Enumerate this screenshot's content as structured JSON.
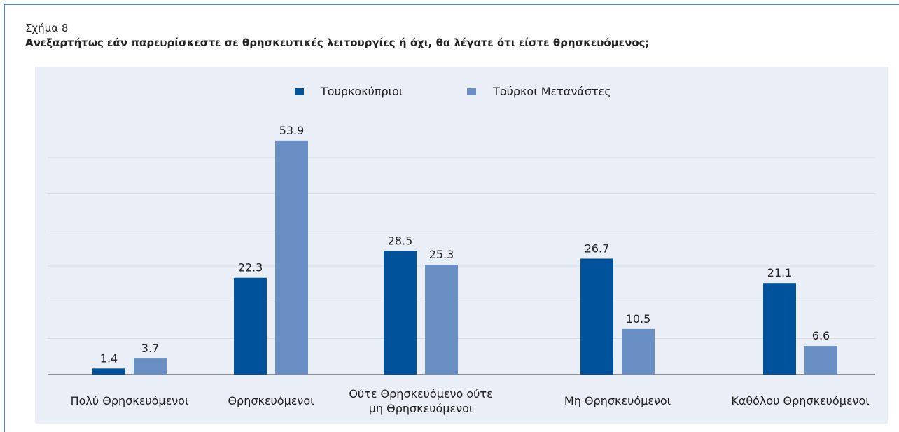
{
  "chart_data": {
    "type": "bar",
    "figure_label": "Σχήμα 8",
    "title": "Ανεξαρτήτως εάν παρευρίσκεστε σε θρησκευτικές λειτουργίες ή όχι, θα λέγατε ότι είστε θρησκευόμενος;",
    "categories": [
      "Πολύ Θρησκευόμενοι",
      "Θρησκευόμενοι",
      "Ούτε Θρησκευόμενο ούτε\nμη Θρησκευόμενοι",
      "Μη Θρησκευόμενοι",
      "Καθόλου Θρησκευόμενοι"
    ],
    "series": [
      {
        "name": "Τουρκοκύπριοι",
        "color": "#00529b",
        "values": [
          1.4,
          22.3,
          28.5,
          26.7,
          21.1
        ]
      },
      {
        "name": "Τούρκοι Μετανάστες",
        "color": "#6a8fc4",
        "values": [
          3.7,
          53.9,
          25.3,
          10.5,
          6.6
        ]
      }
    ],
    "ylim": [
      0,
      60
    ],
    "yticks": [
      0,
      8.3,
      16.7,
      25,
      33.3,
      41.7,
      50
    ],
    "grid": true,
    "legend": "top"
  }
}
